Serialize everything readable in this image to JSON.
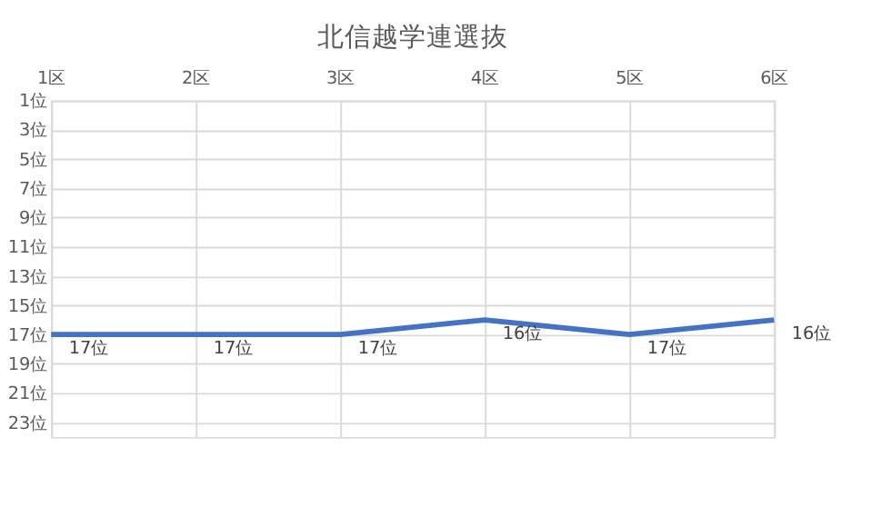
{
  "chart_data": {
    "type": "line",
    "title": "北信越学連選抜",
    "categories": [
      "1区",
      "2区",
      "3区",
      "4区",
      "5区",
      "6区"
    ],
    "series": [
      {
        "color": "#4472c4",
        "values": [
          17,
          17,
          17,
          16,
          17,
          16
        ],
        "value_labels": [
          "17位",
          "17位",
          "17位",
          "16位",
          "17位",
          "16位"
        ]
      }
    ],
    "ylim": [
      24,
      1
    ],
    "yticks": [
      {
        "value": 1,
        "label": "1位"
      },
      {
        "value": 3,
        "label": "3位"
      },
      {
        "value": 5,
        "label": "5位"
      },
      {
        "value": 7,
        "label": "7位"
      },
      {
        "value": 9,
        "label": "9位"
      },
      {
        "value": 11,
        "label": "11位"
      },
      {
        "value": 13,
        "label": "13位"
      },
      {
        "value": 15,
        "label": "15位"
      },
      {
        "value": 17,
        "label": "17位"
      },
      {
        "value": 19,
        "label": "19位"
      },
      {
        "value": 21,
        "label": "21位"
      },
      {
        "value": 23,
        "label": "23位"
      }
    ],
    "grid": true,
    "marker": "none"
  }
}
